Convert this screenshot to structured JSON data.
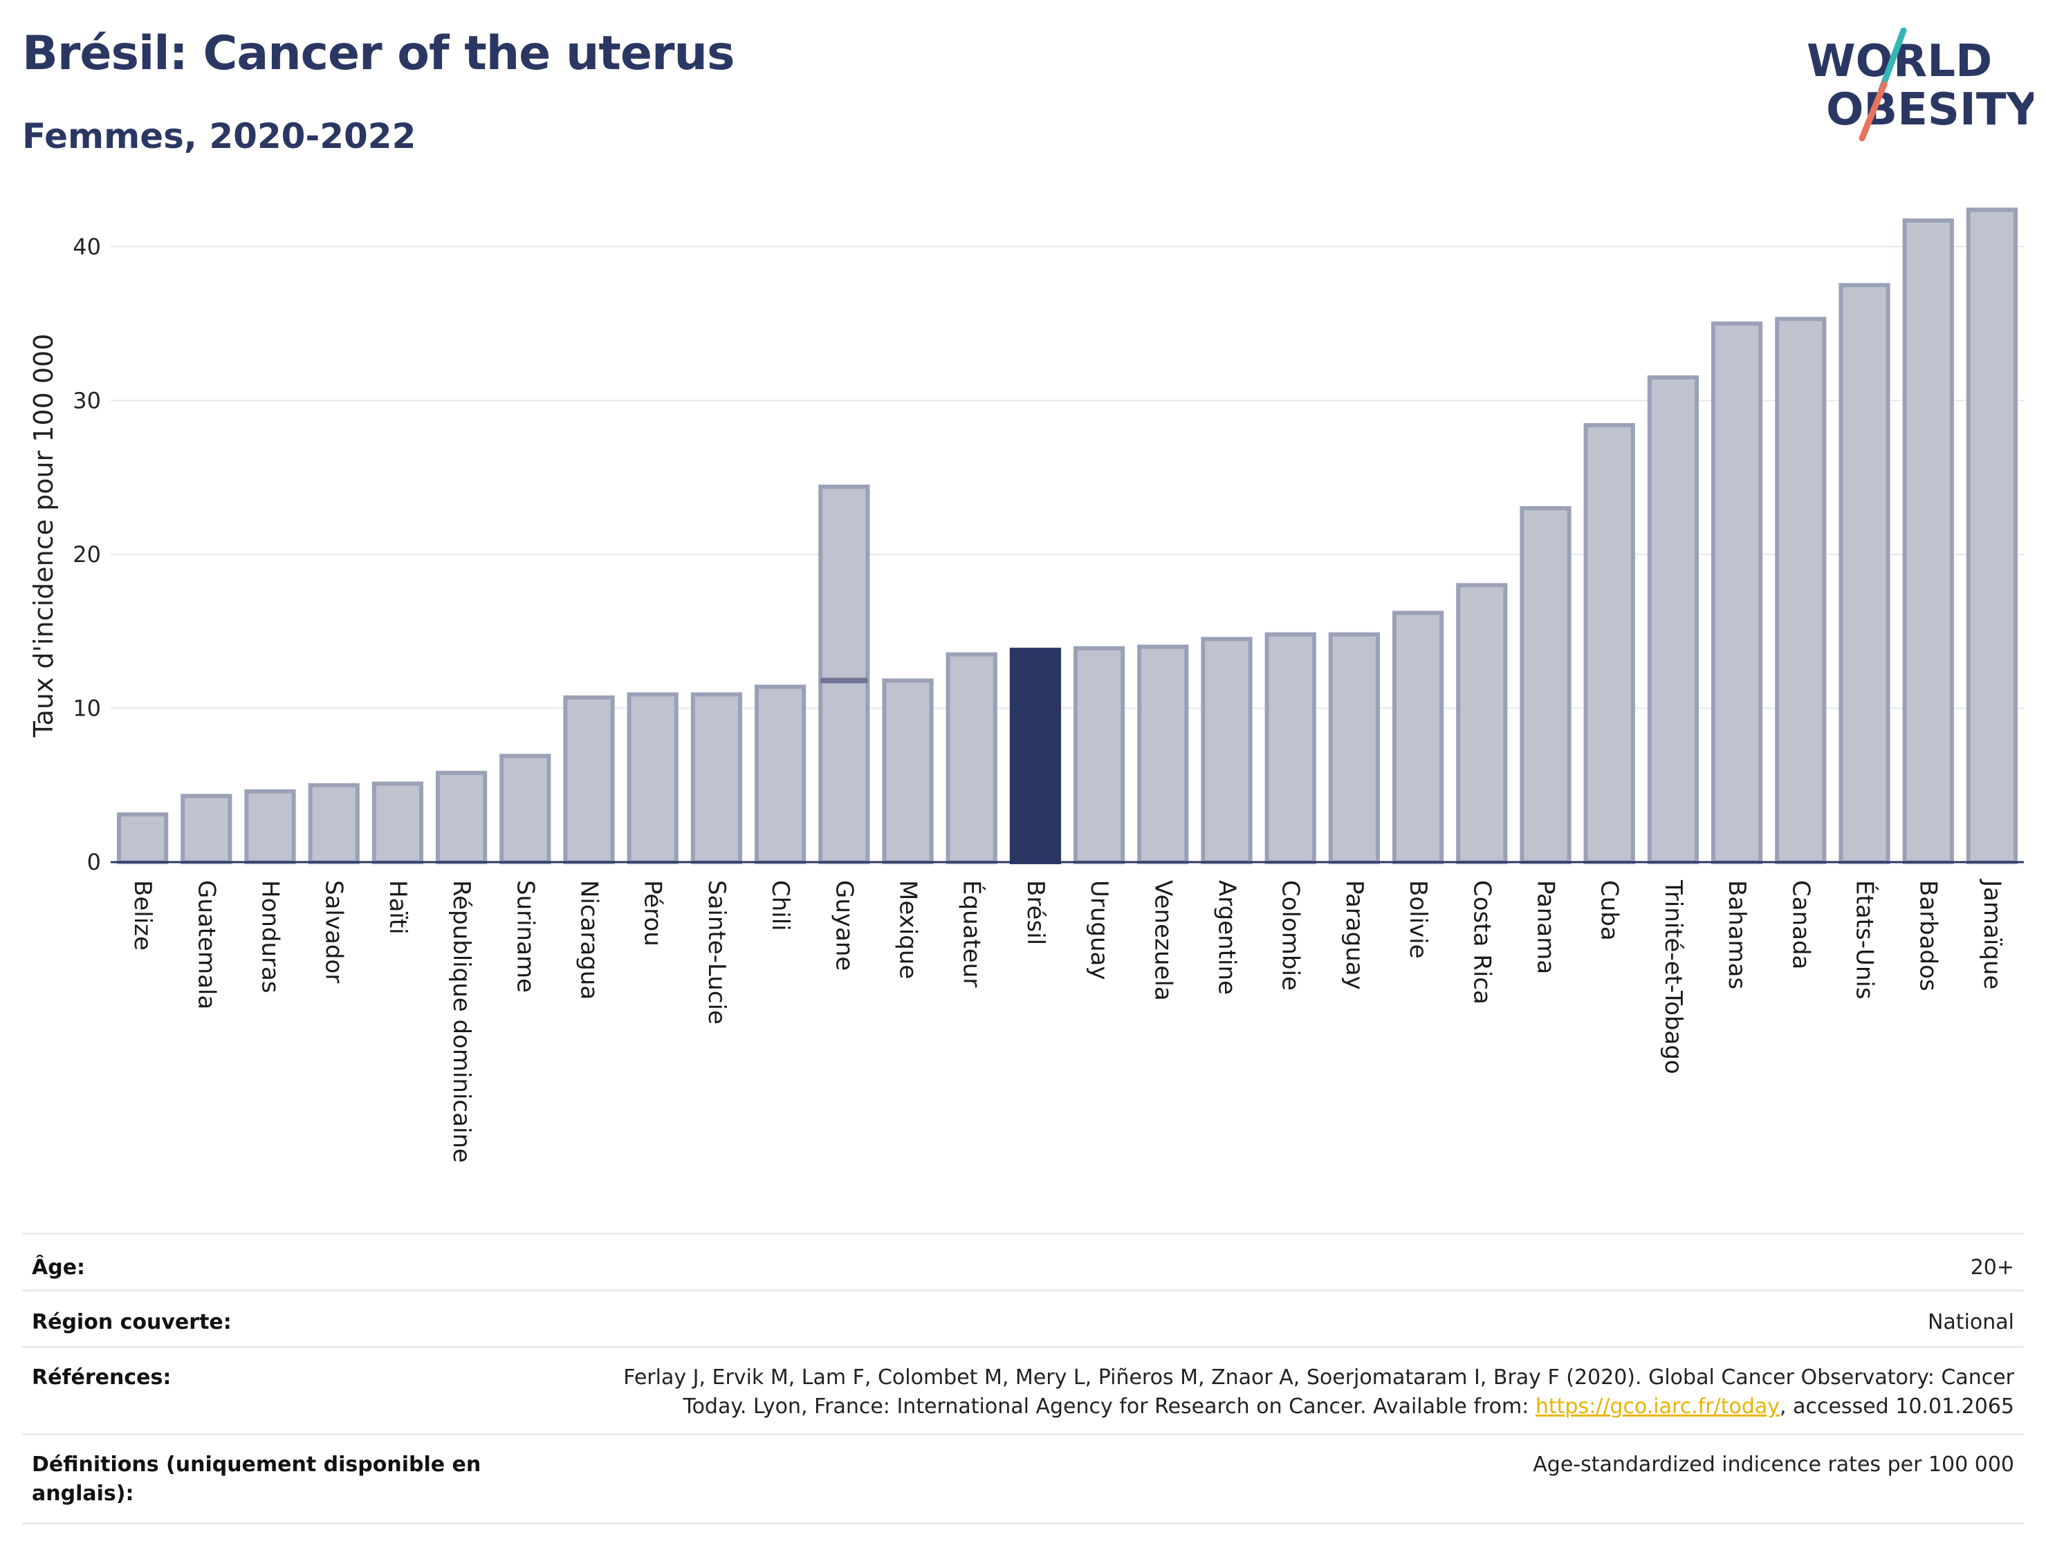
{
  "header": {
    "title": "Brésil: Cancer of the uterus",
    "subtitle": "Femmes, 2020-2022",
    "logo_line1": "WORLD",
    "logo_line2": "OBESITY"
  },
  "colors": {
    "title": "#2b3763",
    "bar_fill": "#bfc3cf",
    "bar_stroke": "#9aa1b7",
    "highlight": "#2b3763",
    "logo_teal": "#35b6b4",
    "logo_coral": "#e8735c",
    "link": "#e8b400"
  },
  "chart_data": {
    "type": "bar",
    "ylabel": "Taux d'incidence pour 100 000",
    "xlabel": "",
    "ylim": [
      0,
      43
    ],
    "yticks": [
      0,
      10,
      20,
      30,
      40
    ],
    "grid": true,
    "highlight_category": "Brésil",
    "categories": [
      "Belize",
      "Guatemala",
      "Honduras",
      "Salvador",
      "Haïti",
      "République dominicaine",
      "Suriname",
      "Nicaragua",
      "Pérou",
      "Sainte-Lucie",
      "Chili",
      "Guyane",
      "Mexique",
      "Équateur",
      "Brésil",
      "Uruguay",
      "Venezuela",
      "Argentine",
      "Colombie",
      "Paraguay",
      "Bolivie",
      "Costa Rica",
      "Panama",
      "Cuba",
      "Trinité-et-Tobago",
      "Bahamas",
      "Canada",
      "États-Unis",
      "Barbados",
      "Jamaïque"
    ],
    "values": [
      3.1,
      4.3,
      4.6,
      5.0,
      5.1,
      5.8,
      6.9,
      10.7,
      10.9,
      10.9,
      11.4,
      24.4,
      11.8,
      13.5,
      13.8,
      13.9,
      14.0,
      14.5,
      14.8,
      14.8,
      16.2,
      18.0,
      23.0,
      28.4,
      31.5,
      35.0,
      35.3,
      37.5,
      41.7,
      42.4
    ],
    "secondary_markers": [
      {
        "category": "Guyane",
        "value": 11.8
      }
    ]
  },
  "info": {
    "rows": [
      {
        "label": "Âge:",
        "value": "20+"
      },
      {
        "label": "Région couverte:",
        "value": "National"
      },
      {
        "label": "Références:",
        "value_line1": "Ferlay J, Ervik M, Lam F, Colombet M, Mery L, Piñeros M, Znaor A, Soerjomataram I, Bray F (2020). Global Cancer Observatory: Cancer",
        "value_line2_pre": "Today. Lyon, France: International Agency for Research on Cancer. Available from: ",
        "link": "https://gco.iarc.fr/today",
        "value_line2_post": ", accessed 10.01.2065"
      },
      {
        "label_line1": "Définitions (uniquement disponible en",
        "label_line2": "anglais):",
        "value": "Age-standardized indicence rates per 100 000"
      }
    ]
  }
}
